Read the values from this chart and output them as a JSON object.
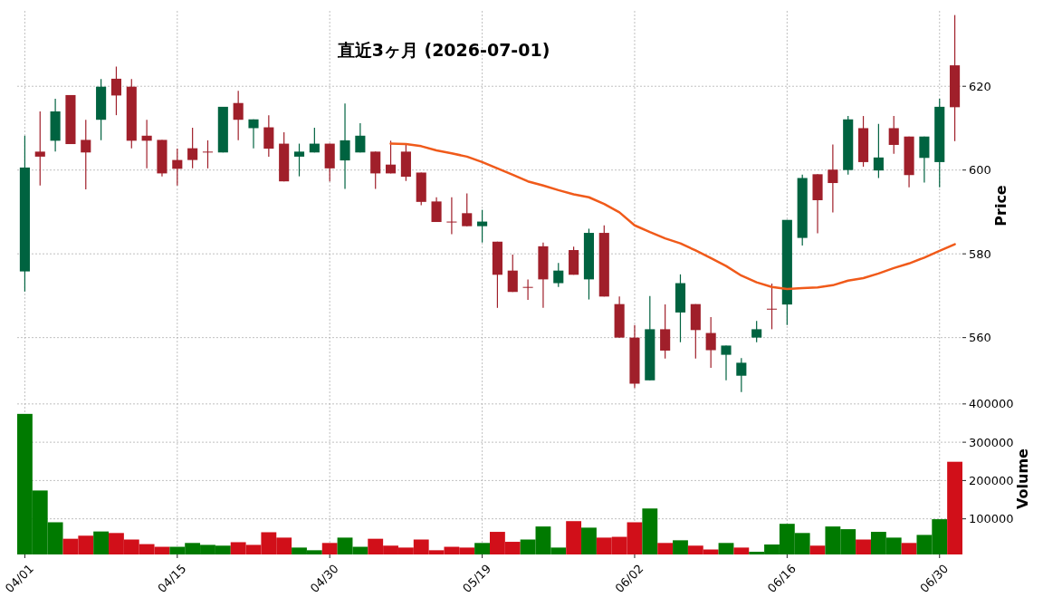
{
  "chart_data": [
    {
      "type": "candlestick",
      "title": "直近3ヶ月 (2026-07-01)",
      "ylabel": "Price",
      "categories": [
        null,
        null,
        null,
        null,
        null,
        null,
        null,
        null,
        null,
        null,
        null,
        null,
        null,
        null,
        null,
        null,
        null,
        null,
        null,
        null,
        null,
        null,
        null,
        null,
        null,
        null,
        null,
        null,
        null,
        null,
        null,
        null,
        null,
        null,
        null,
        null,
        null,
        null,
        null,
        null,
        null,
        null,
        null,
        null,
        null,
        null,
        null,
        null,
        null,
        null,
        null,
        null,
        null,
        null,
        null,
        null,
        null,
        null,
        null,
        null,
        null,
        null
      ],
      "ohlc": [
        [
          575.8,
          608.2,
          571.0,
          600.6
        ],
        [
          604.4,
          614.0,
          596.3,
          603.2
        ],
        [
          607.0,
          617.0,
          604.4,
          614.0
        ],
        [
          617.9,
          617.9,
          606.2,
          606.2
        ],
        [
          607.2,
          612.0,
          595.4,
          604.2
        ],
        [
          612.0,
          621.7,
          607.1,
          619.9
        ],
        [
          621.8,
          624.7,
          613.1,
          617.8
        ],
        [
          619.9,
          621.7,
          605.2,
          607.0
        ],
        [
          608.2,
          612.0,
          600.4,
          607.0
        ],
        [
          607.2,
          607.2,
          598.5,
          599.2
        ],
        [
          602.4,
          605.1,
          596.3,
          600.3
        ],
        [
          605.2,
          610.1,
          600.4,
          602.4
        ],
        [
          604.4,
          607.1,
          600.4,
          604.3
        ],
        [
          604.2,
          615.1,
          604.2,
          615.1
        ],
        [
          616.0,
          618.9,
          607.1,
          612.0
        ],
        [
          610.0,
          612.1,
          605.2,
          612.1
        ],
        [
          610.2,
          613.1,
          603.2,
          605.1
        ],
        [
          606.3,
          609.0,
          597.3,
          597.3
        ],
        [
          603.2,
          606.3,
          598.5,
          604.4
        ],
        [
          604.2,
          610.1,
          604.2,
          606.3
        ],
        [
          606.3,
          606.3,
          597.3,
          600.4
        ],
        [
          602.3,
          615.9,
          595.5,
          607.1
        ],
        [
          604.2,
          611.2,
          604.2,
          608.2
        ],
        [
          604.4,
          604.4,
          595.5,
          599.2
        ],
        [
          601.3,
          607.0,
          599.2,
          599.2
        ],
        [
          604.4,
          606.0,
          597.4,
          598.4
        ],
        [
          599.4,
          599.4,
          591.6,
          592.4
        ],
        [
          592.5,
          593.5,
          587.6,
          587.6
        ],
        [
          587.7,
          593.5,
          584.7,
          587.7
        ],
        [
          589.7,
          594.4,
          586.6,
          586.6
        ],
        [
          586.6,
          590.5,
          582.7,
          587.7
        ],
        [
          582.9,
          582.9,
          567.1,
          575.0
        ],
        [
          576.0,
          579.8,
          570.9,
          570.9
        ],
        [
          572.1,
          573.9,
          569.0,
          572.1
        ],
        [
          581.8,
          582.7,
          567.1,
          573.9
        ],
        [
          573.0,
          577.8,
          572.1,
          576.0
        ],
        [
          580.9,
          581.7,
          575.0,
          575.0
        ],
        [
          573.9,
          586.0,
          569.1,
          585.0
        ],
        [
          585.0,
          586.8,
          569.8,
          569.8
        ],
        [
          568.0,
          569.8,
          560.0,
          560.0
        ],
        [
          560.0,
          563.0,
          548.0,
          549.0
        ],
        [
          549.8,
          569.9,
          549.8,
          562.0
        ],
        [
          562.0,
          567.9,
          555.0,
          556.9
        ],
        [
          566.0,
          575.1,
          558.9,
          573.0
        ],
        [
          568.0,
          568.0,
          555.0,
          561.8
        ],
        [
          561.1,
          564.9,
          552.8,
          557.0
        ],
        [
          555.9,
          558.1,
          549.8,
          558.1
        ],
        [
          550.9,
          555.1,
          547.0,
          554.0
        ],
        [
          560.0,
          564.0,
          558.9,
          562.0
        ],
        [
          566.9,
          572.9,
          562.0,
          566.9
        ],
        [
          567.9,
          588.1,
          563.0,
          588.1
        ],
        [
          583.8,
          598.9,
          582.0,
          598.1
        ],
        [
          599.0,
          599.0,
          584.9,
          592.8
        ],
        [
          600.1,
          606.1,
          589.9,
          596.9
        ],
        [
          600.0,
          612.9,
          598.9,
          612.1
        ],
        [
          610.0,
          612.9,
          600.8,
          601.9
        ],
        [
          599.9,
          611.0,
          598.1,
          603.0
        ],
        [
          610.0,
          612.9,
          603.9,
          606.0
        ],
        [
          608.0,
          608.0,
          595.9,
          598.8
        ],
        [
          602.9,
          608.0,
          597.0,
          608.0
        ],
        [
          601.9,
          617.0,
          595.9,
          615.1
        ],
        [
          625.0,
          637.0,
          606.9,
          615.0
        ]
      ],
      "colors": [
        "#006340",
        "#a01f2a",
        "#006340",
        "#a01f2a",
        "#a01f2a",
        "#006340",
        "#a01f2a",
        "#a01f2a",
        "#a01f2a",
        "#a01f2a",
        "#a01f2a",
        "#a01f2a",
        "#a01f2a",
        "#006340",
        "#a01f2a",
        "#006340",
        "#a01f2a",
        "#a01f2a",
        "#006340",
        "#006340",
        "#a01f2a",
        "#006340",
        "#006340",
        "#a01f2a",
        "#a01f2a",
        "#a01f2a",
        "#a01f2a",
        "#a01f2a",
        "#a01f2a",
        "#a01f2a",
        "#006340",
        "#a01f2a",
        "#a01f2a",
        "#a01f2a",
        "#a01f2a",
        "#006340",
        "#a01f2a",
        "#006340",
        "#a01f2a",
        "#a01f2a",
        "#a01f2a",
        "#006340",
        "#a01f2a",
        "#006340",
        "#a01f2a",
        "#a01f2a",
        "#006340",
        "#006340",
        "#006340",
        "#a01f2a",
        "#006340",
        "#006340",
        "#a01f2a",
        "#a01f2a",
        "#006340",
        "#a01f2a",
        "#006340",
        "#a01f2a",
        "#a01f2a",
        "#006340",
        "#006340",
        "#a01f2a"
      ],
      "series": [
        {
          "type": "line",
          "color": "#f05a1a",
          "values": [
            null,
            null,
            null,
            null,
            null,
            null,
            null,
            null,
            null,
            null,
            null,
            null,
            null,
            null,
            null,
            null,
            null,
            null,
            null,
            null,
            null,
            null,
            null,
            null,
            606.3,
            606.2,
            605.7,
            604.7,
            604.0,
            603.2,
            601.9,
            600.4,
            598.9,
            597.3,
            596.3,
            595.2,
            594.2,
            593.5,
            591.9,
            589.9,
            586.8,
            585.2,
            583.7,
            582.5,
            580.8,
            579.0,
            577.1,
            574.8,
            573.2,
            572.1,
            571.6,
            571.8,
            572.0,
            572.5,
            573.6,
            574.2,
            575.3,
            576.6,
            577.7,
            579.1,
            580.7,
            582.3
          ]
        }
      ],
      "ylim": [
        545,
        638
      ],
      "yticks": [
        560,
        580,
        600,
        620
      ],
      "grid": true,
      "tick_labels": "y"
    },
    {
      "type": "bar",
      "ylabel": "Volume",
      "categories": [
        "04/01",
        null,
        null,
        null,
        null,
        null,
        null,
        null,
        null,
        null,
        "04/15",
        null,
        null,
        null,
        null,
        null,
        null,
        null,
        null,
        null,
        "04/30",
        null,
        null,
        null,
        null,
        null,
        null,
        null,
        null,
        null,
        "05/19",
        null,
        null,
        null,
        null,
        null,
        null,
        null,
        null,
        null,
        "06/02",
        null,
        null,
        null,
        null,
        null,
        null,
        null,
        null,
        null,
        "06/16",
        null,
        null,
        null,
        null,
        null,
        null,
        null,
        null,
        null,
        "06/30",
        null
      ],
      "values": [
        374000,
        174000,
        91000,
        48000,
        56000,
        67000,
        63000,
        46000,
        34000,
        27000,
        27000,
        37000,
        32000,
        30000,
        39000,
        32000,
        65000,
        51000,
        25000,
        18000,
        37000,
        51000,
        27000,
        48000,
        30000,
        25000,
        46000,
        18000,
        27000,
        25000,
        37000,
        66000,
        40000,
        46000,
        80000,
        25000,
        94000,
        77000,
        51000,
        53000,
        91000,
        127000,
        37000,
        44000,
        30000,
        20000,
        37000,
        25000,
        14000,
        33000,
        87000,
        63000,
        30000,
        80000,
        73000,
        46000,
        66000,
        51000,
        37000,
        58000,
        99000,
        249000
      ],
      "colors": [
        "#007a00",
        "#007a00",
        "#007a00",
        "#d10f19",
        "#d10f19",
        "#007a00",
        "#d10f19",
        "#d10f19",
        "#d10f19",
        "#d10f19",
        "#007a00",
        "#007a00",
        "#007a00",
        "#007a00",
        "#d10f19",
        "#d10f19",
        "#d10f19",
        "#d10f19",
        "#007a00",
        "#007a00",
        "#d10f19",
        "#007a00",
        "#007a00",
        "#d10f19",
        "#d10f19",
        "#d10f19",
        "#d10f19",
        "#d10f19",
        "#d10f19",
        "#d10f19",
        "#007a00",
        "#d10f19",
        "#d10f19",
        "#007a00",
        "#007a00",
        "#007a00",
        "#d10f19",
        "#007a00",
        "#d10f19",
        "#d10f19",
        "#d10f19",
        "#007a00",
        "#d10f19",
        "#007a00",
        "#d10f19",
        "#d10f19",
        "#007a00",
        "#d10f19",
        "#007a00",
        "#007a00",
        "#007a00",
        "#007a00",
        "#d10f19",
        "#007a00",
        "#007a00",
        "#d10f19",
        "#007a00",
        "#007a00",
        "#d10f19",
        "#007a00",
        "#007a00",
        "#d10f19"
      ],
      "ylim": [
        7000,
        402000
      ],
      "yticks": [
        100000,
        200000,
        300000,
        400000
      ],
      "grid": true
    }
  ]
}
